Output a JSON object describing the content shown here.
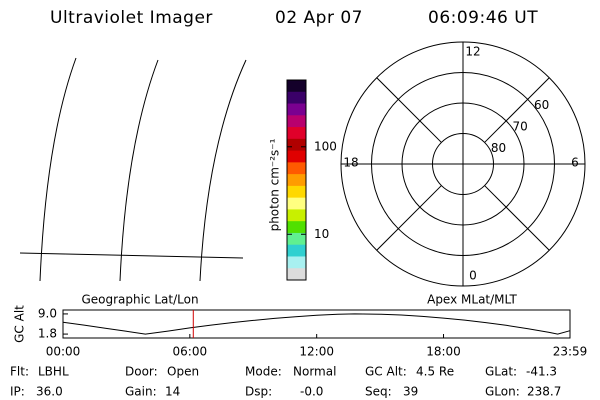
{
  "header": {
    "title": "Ultraviolet Imager",
    "date": "02 Apr 07",
    "time": "06:09:46 UT"
  },
  "colorbar": {
    "label": "photon cm⁻²s⁻¹",
    "scale": "log",
    "lim": [
      3,
      580
    ],
    "ticks": [
      10,
      100
    ],
    "colors": [
      "#14002a",
      "#3a0068",
      "#7a0090",
      "#b8006e",
      "#e0002a",
      "#b00000",
      "#e00000",
      "#ff5a00",
      "#ff9c00",
      "#ffd800",
      "#ffff80",
      "#c8f000",
      "#50e000",
      "#60f090",
      "#30d0d0",
      "#a8f0f0",
      "#dcdcdc"
    ]
  },
  "polar": {
    "lat_lim": [
      90,
      50
    ],
    "lat_ticks": [
      80,
      70,
      60
    ],
    "mlt_ticks": [
      12,
      18,
      6,
      0
    ]
  },
  "alt_plot": {
    "ylabel": "GC Alt",
    "left_label": "Geographic Lat/Lon",
    "right_label": "Apex MLat/MLT",
    "xlim": [
      0,
      23.983
    ],
    "ylim": [
      0.4,
      10.4
    ],
    "xticks": [
      {
        "value": 0,
        "label": "00:00"
      },
      {
        "value": 6,
        "label": "06:00"
      },
      {
        "value": 12,
        "label": "12:00"
      },
      {
        "value": 18,
        "label": "18:00"
      },
      {
        "value": 23.983,
        "label": "23:59"
      }
    ],
    "yticks": [
      {
        "value": 9,
        "label": "9.0"
      },
      {
        "value": 1.8,
        "label": "1.8"
      }
    ],
    "x": [
      0,
      1,
      2,
      3,
      3.9,
      5,
      6,
      7,
      8,
      9,
      10,
      11,
      12,
      13,
      13.8,
      15,
      16,
      17,
      18,
      19,
      20,
      21,
      22,
      23,
      23.4,
      23.983
    ],
    "values": [
      6.0,
      5.0,
      3.9,
      2.8,
      1.8,
      2.9,
      4.0,
      5.0,
      5.9,
      6.7,
      7.4,
      8.0,
      8.5,
      8.9,
      9.0,
      8.9,
      8.6,
      8.1,
      7.5,
      6.8,
      5.9,
      4.9,
      3.7,
      2.4,
      1.8,
      3.0
    ],
    "color": "#000000",
    "marker_x": 6.1628,
    "marker_color": "#d00000"
  },
  "info": [
    [
      {
        "label": "Flt:",
        "value": "LBHL"
      },
      {
        "label": "Door:",
        "value": "Open"
      },
      {
        "label": "Mode:",
        "value": "Normal"
      },
      {
        "label": "GC Alt:",
        "value": "4.5 Re"
      },
      {
        "label": "GLat:",
        "value": "-41.3"
      }
    ],
    [
      {
        "label": "IP:",
        "value": "36.0"
      },
      {
        "label": "Gain:",
        "value": "14"
      },
      {
        "label": "Dsp:",
        "value": "-0.0"
      },
      {
        "label": "Seq:",
        "value": "39"
      },
      {
        "label": "GLon:",
        "value": "238.7"
      }
    ]
  ]
}
